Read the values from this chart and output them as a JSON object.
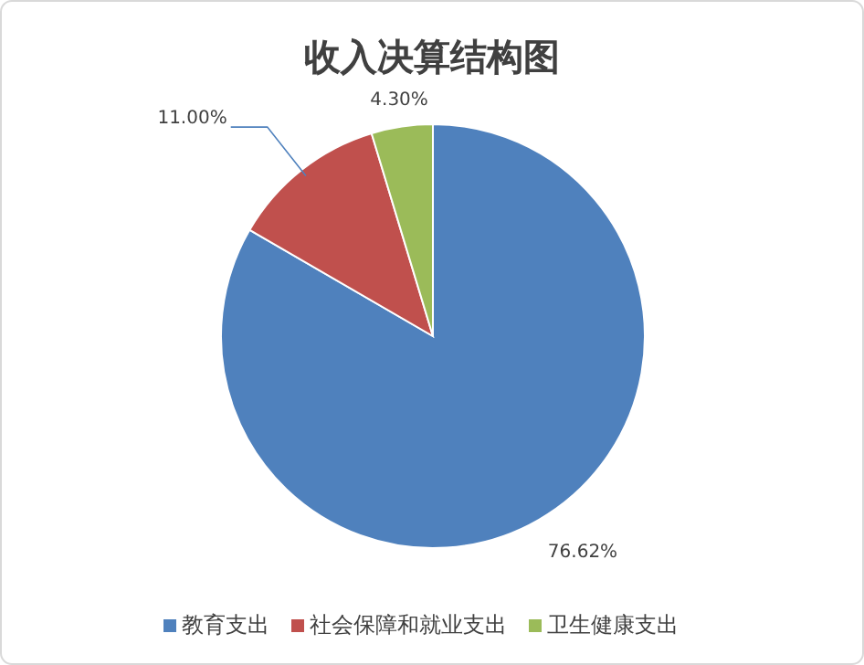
{
  "chart_data": {
    "type": "pie",
    "title": "收入决算结构图",
    "categories": [
      "教育支出",
      "社会保障和就业支出",
      "卫生健康支出"
    ],
    "values": [
      76.62,
      11.0,
      4.3
    ],
    "value_labels": [
      "76.62%",
      "11.00%",
      "4.30%"
    ],
    "colors": [
      "#4f81bd",
      "#c0504d",
      "#9bbb59"
    ],
    "legend": "bottom"
  }
}
